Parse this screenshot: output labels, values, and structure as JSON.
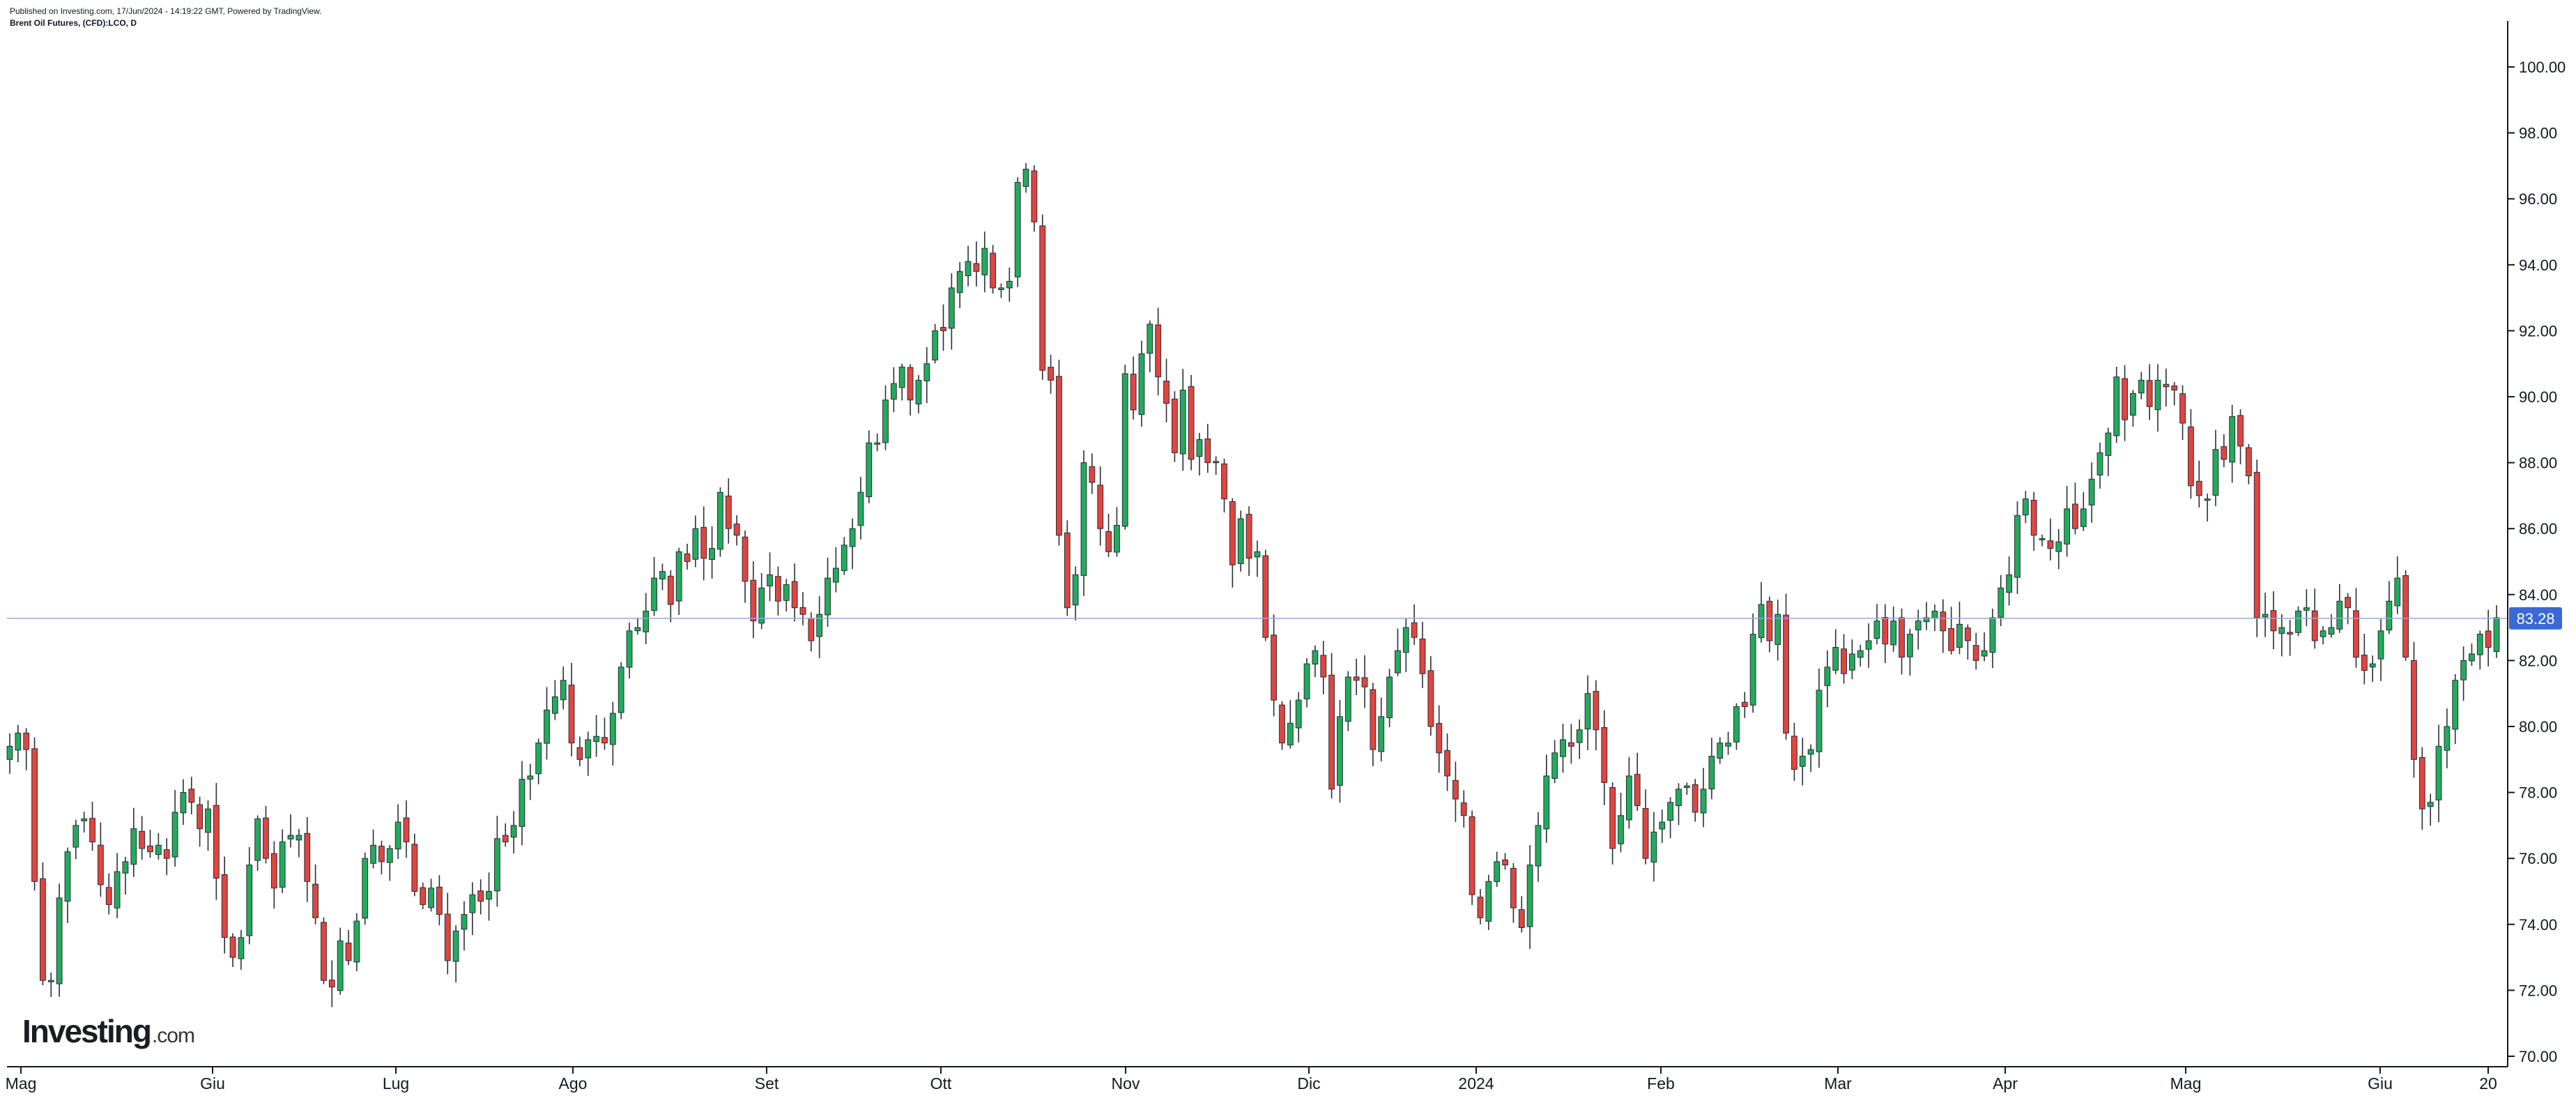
{
  "header": {
    "published": "Published on Investing.com, 17/Jun/2024 - 14:19:22 GMT, Powered by TradingView.",
    "symbol": "Brent Oil Futures, (CFD):LCO, D"
  },
  "logo": {
    "brand": "Investing",
    "tld": ".com"
  },
  "colors": {
    "up": "#22ab5c",
    "down": "#e0453f",
    "wick": "#2a2e39",
    "price_line": "#9aa6d8",
    "price_badge": "#3a68d6",
    "grid_axis": "#131722"
  },
  "chart_data": {
    "type": "candlestick",
    "ylim": [
      70,
      100
    ],
    "y_ticks": [
      "70.00",
      "72.00",
      "74.00",
      "76.00",
      "78.00",
      "80.00",
      "82.00",
      "84.00",
      "86.00",
      "88.00",
      "90.00",
      "92.00",
      "94.00",
      "96.00",
      "98.00",
      "100.00"
    ],
    "x_ticks": [
      "Mag",
      "Giu",
      "Lug",
      "Ago",
      "Set",
      "Ott",
      "Nov",
      "Dic",
      "2024",
      "Feb",
      "Mar",
      "Apr",
      "Mag",
      "Giu",
      "20"
    ],
    "last_price": 83.28,
    "last_price_label": "83.28",
    "closes": [
      79.4,
      79.8,
      79.3,
      75.3,
      72.3,
      72.3,
      74.8,
      76.2,
      77.0,
      77.2,
      76.5,
      75.2,
      74.6,
      75.6,
      75.9,
      76.9,
      76.3,
      76.2,
      76.4,
      76.0,
      77.4,
      78.0,
      77.7,
      76.9,
      77.5,
      75.4,
      73.6,
      73.0,
      73.6,
      75.8,
      77.2,
      76.0,
      75.1,
      76.5,
      76.7,
      76.7,
      75.3,
      74.2,
      72.3,
      72.1,
      73.5,
      72.9,
      74.1,
      76.0,
      76.4,
      75.9,
      76.3,
      77.1,
      76.5,
      75.0,
      74.6,
      75.1,
      74.3,
      72.9,
      73.8,
      74.3,
      74.9,
      74.7,
      75.0,
      76.6,
      76.5,
      77.0,
      78.4,
      78.5,
      79.5,
      80.5,
      80.9,
      81.4,
      79.5,
      79.0,
      79.6,
      79.7,
      79.5,
      80.4,
      81.8,
      82.9,
      83.0,
      83.5,
      84.5,
      84.7,
      83.7,
      85.3,
      85.0,
      86.0,
      85.1,
      85.4,
      87.1,
      86.0,
      85.8,
      84.4,
      83.2,
      84.2,
      84.6,
      83.8,
      84.3,
      83.6,
      83.4,
      82.6,
      83.4,
      84.5,
      84.8,
      85.5,
      86.0,
      87.1,
      88.6,
      88.6,
      89.9,
      90.4,
      90.9,
      89.9,
      90.5,
      91.0,
      92.0,
      92.0,
      93.3,
      93.8,
      94.1,
      93.8,
      94.5,
      93.3,
      93.3,
      93.5,
      96.5,
      96.9,
      95.3,
      90.8,
      90.5,
      85.8,
      83.6,
      84.6,
      88.0,
      87.4,
      86.0,
      85.3,
      86.1,
      90.7,
      89.6,
      91.3,
      92.2,
      90.6,
      89.8,
      88.3,
      90.2,
      88.1,
      88.7,
      88.0,
      88.0,
      86.9,
      84.9,
      86.3,
      85.1,
      85.3,
      82.7,
      80.8,
      79.5,
      80.1,
      80.8,
      81.9,
      82.3,
      81.5,
      78.1,
      80.3,
      81.5,
      81.4,
      81.2,
      79.3,
      80.3,
      81.5,
      82.3,
      83.0,
      82.7,
      81.6,
      80.0,
      79.2,
      78.5,
      77.8,
      77.3,
      74.9,
      74.2,
      75.3,
      75.9,
      75.8,
      74.5,
      73.9,
      75.8,
      77.0,
      78.5,
      79.2,
      79.6,
      79.4,
      79.9,
      81.0,
      79.9,
      78.3,
      76.3,
      77.3,
      78.5,
      77.6,
      76.0,
      76.8,
      77.1,
      77.7,
      78.1,
      78.2,
      77.4,
      78.1,
      79.1,
      79.5,
      79.5,
      80.6,
      80.6,
      82.8,
      83.7,
      82.6,
      83.4,
      79.8,
      78.7,
      79.1,
      79.3,
      81.1,
      81.8,
      82.4,
      81.6,
      82.2,
      82.3,
      82.6,
      83.2,
      82.5,
      83.2,
      82.1,
      82.8,
      83.2,
      83.3,
      83.5,
      82.9,
      82.3,
      83.1,
      82.6,
      82.0,
      82.3,
      83.3,
      84.2,
      84.6,
      86.4,
      86.9,
      85.8,
      85.7,
      85.4,
      85.6,
      86.6,
      86.0,
      86.6,
      87.5,
      88.3,
      88.9,
      90.6,
      89.3,
      90.1,
      90.5,
      89.7,
      90.5,
      90.3,
      90.2,
      89.2,
      87.3,
      87.0,
      86.9,
      88.4,
      88.1,
      89.4,
      88.5,
      87.6,
      83.3,
      83.4,
      82.9,
      83.0,
      82.8,
      83.5,
      83.6,
      82.6,
      82.9,
      83.0,
      83.8,
      83.6,
      82.1,
      81.7,
      81.9,
      82.9,
      83.8,
      84.5,
      82.1,
      79.0,
      77.5,
      77.7,
      79.4,
      80.0,
      81.4,
      82.0,
      82.2,
      82.8,
      82.4,
      83.3
    ]
  }
}
